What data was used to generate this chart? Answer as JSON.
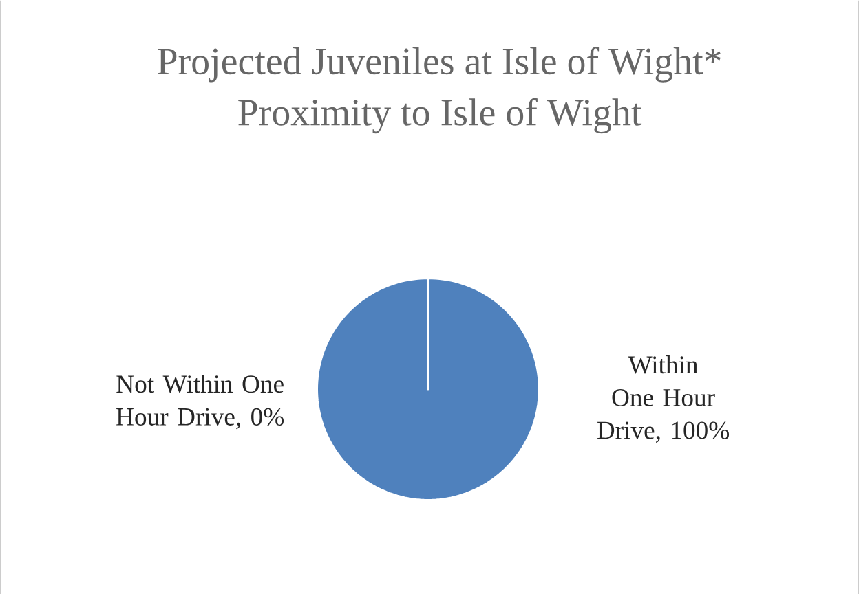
{
  "chart_data": {
    "type": "pie",
    "title": "Projected Juveniles at Isle of Wight*",
    "subtitle": "Proximity to Isle of Wight",
    "categories": [
      "Not Within One Hour Drive",
      "Within One Hour Drive"
    ],
    "values": [
      0,
      100
    ],
    "colors": [
      "#c0504d",
      "#4f81bd"
    ],
    "value_labels": [
      ", 0%",
      ", 100%"
    ]
  }
}
